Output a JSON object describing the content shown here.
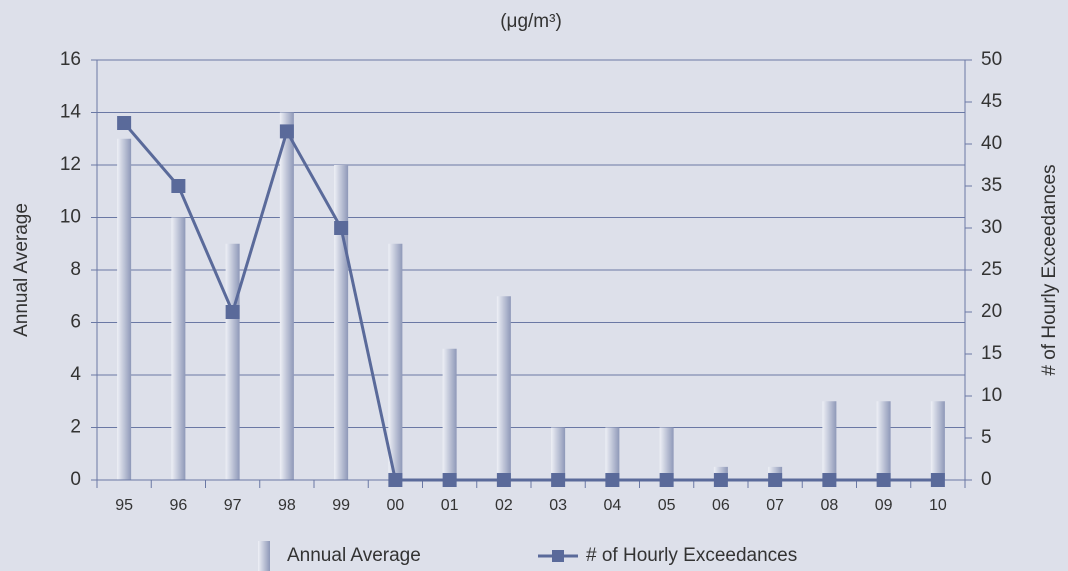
{
  "chart_data": {
    "type": "bar-line",
    "title": "(μg/m³)",
    "y_label": "Annual Average",
    "y2_label": "# of Hourly Exceedances",
    "categories": [
      "95",
      "96",
      "97",
      "98",
      "99",
      "00",
      "01",
      "02",
      "03",
      "04",
      "05",
      "06",
      "07",
      "08",
      "09",
      "10"
    ],
    "series": [
      {
        "name": "Annual Average",
        "type": "bar",
        "color": "#8e98b8",
        "values": [
          13,
          10,
          9,
          14,
          12,
          9,
          5,
          7,
          2,
          2,
          2,
          0.5,
          0.5,
          3,
          3,
          3
        ]
      },
      {
        "name": "# of Hourly Exceedances",
        "type": "line",
        "axis": "y2",
        "color": "#5a6a9a",
        "values": [
          42.5,
          35,
          20,
          41.5,
          30,
          0,
          0,
          0,
          0,
          0,
          0,
          0,
          0,
          0,
          0,
          0
        ]
      }
    ],
    "ylim": [
      0,
      16
    ],
    "yticks": [
      0,
      2,
      4,
      6,
      8,
      10,
      12,
      14,
      16
    ],
    "y2lim": [
      0,
      50
    ],
    "y2ticks": [
      0,
      5,
      10,
      15,
      20,
      25,
      30,
      35,
      40,
      45,
      50
    ],
    "grid": true
  }
}
